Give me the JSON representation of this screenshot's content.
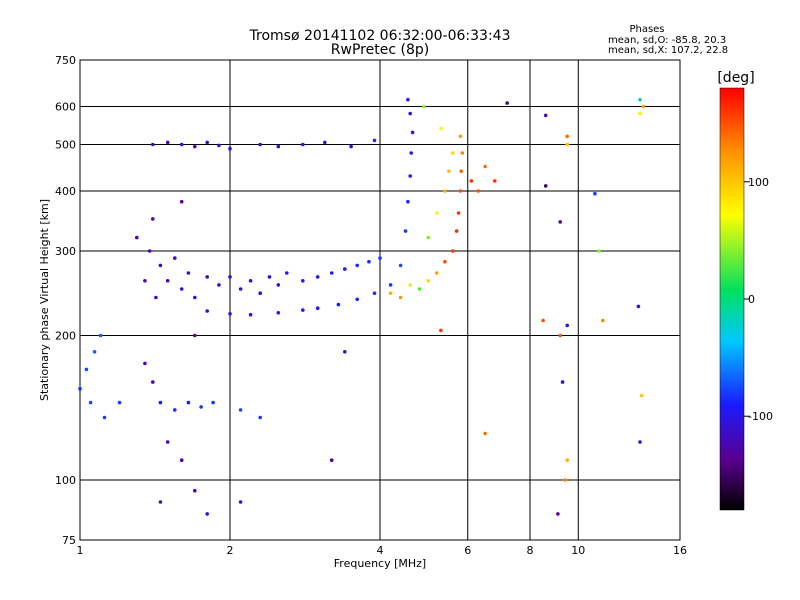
{
  "chart_data": {
    "type": "scatter",
    "title": "Tromsø 20141102 06:32:00-06:33:43",
    "subtitle": "RwPretec (8p)",
    "xlabel": "Frequency [MHz]",
    "ylabel": "Stationary phase Virtual Height [km]",
    "x_scale": "log",
    "y_scale": "log",
    "xlim": [
      1,
      16
    ],
    "ylim": [
      75,
      750
    ],
    "x_ticks": [
      1,
      2,
      4,
      6,
      8,
      10,
      16
    ],
    "x_tick_labels": [
      "1",
      "2",
      "4",
      "6",
      "8",
      "10",
      "16"
    ],
    "y_ticks": [
      75,
      100,
      200,
      300,
      400,
      500,
      600,
      750
    ],
    "y_tick_labels": [
      "75",
      "100",
      "200",
      "300",
      "400",
      "500",
      "600",
      "750"
    ],
    "grid_x": [
      2,
      4,
      6,
      8,
      10
    ],
    "grid_y": [
      100,
      200,
      300,
      400,
      500,
      600
    ],
    "grid": true,
    "phase_header": "Phases",
    "stats_o": "mean, sd,O: -85.8, 20.3",
    "stats_x": "mean, sd,X: 107.2, 22.8",
    "colorbar": {
      "label": "[deg]",
      "range": [
        -180,
        180
      ],
      "ticks": [
        100,
        0,
        -100
      ],
      "tick_labels": [
        "100",
        "0",
        "-100"
      ]
    },
    "series": [
      {
        "points": [
          [
            1.0,
            155,
            -80
          ],
          [
            1.03,
            170,
            -75
          ],
          [
            1.07,
            185,
            -70
          ],
          [
            1.1,
            200,
            -70
          ],
          [
            1.05,
            145,
            -75
          ],
          [
            1.12,
            135,
            -80
          ],
          [
            1.2,
            145,
            -78
          ],
          [
            1.35,
            260,
            -125
          ],
          [
            1.38,
            300,
            -125
          ],
          [
            1.42,
            240,
            -120
          ],
          [
            1.45,
            280,
            -115
          ],
          [
            1.5,
            260,
            -120
          ],
          [
            1.55,
            290,
            -120
          ],
          [
            1.6,
            250,
            -115
          ],
          [
            1.65,
            270,
            -115
          ],
          [
            1.7,
            240,
            -110
          ],
          [
            1.8,
            265,
            -115
          ],
          [
            1.9,
            255,
            -110
          ],
          [
            2.0,
            265,
            -110
          ],
          [
            2.1,
            250,
            -105
          ],
          [
            2.2,
            260,
            -110
          ],
          [
            2.3,
            245,
            -105
          ],
          [
            2.4,
            265,
            -100
          ],
          [
            2.5,
            255,
            -100
          ],
          [
            2.6,
            270,
            -95
          ],
          [
            2.8,
            260,
            -95
          ],
          [
            3.0,
            265,
            -95
          ],
          [
            3.2,
            270,
            -90
          ],
          [
            3.4,
            275,
            -90
          ],
          [
            3.6,
            280,
            -85
          ],
          [
            3.8,
            285,
            -85
          ],
          [
            4.0,
            290,
            -80
          ],
          [
            1.8,
            225,
            -100
          ],
          [
            2.0,
            222,
            -100
          ],
          [
            2.2,
            221,
            -100
          ],
          [
            2.5,
            223,
            -95
          ],
          [
            2.8,
            226,
            -92
          ],
          [
            3.0,
            228,
            -90
          ],
          [
            3.3,
            232,
            -88
          ],
          [
            3.6,
            238,
            -85
          ],
          [
            3.9,
            245,
            -82
          ],
          [
            4.2,
            255,
            -80
          ],
          [
            4.4,
            280,
            -75
          ],
          [
            4.5,
            330,
            -80
          ],
          [
            4.55,
            380,
            -85
          ],
          [
            4.6,
            430,
            -90
          ],
          [
            4.62,
            480,
            -95
          ],
          [
            4.65,
            530,
            -100
          ],
          [
            4.6,
            580,
            -100
          ],
          [
            4.55,
            620,
            -100
          ],
          [
            1.4,
            500,
            -115
          ],
          [
            1.5,
            505,
            -120
          ],
          [
            1.6,
            500,
            -115
          ],
          [
            1.7,
            495,
            -120
          ],
          [
            1.8,
            505,
            -115
          ],
          [
            1.9,
            498,
            -115
          ],
          [
            2.0,
            490,
            -110
          ],
          [
            2.3,
            500,
            -115
          ],
          [
            2.5,
            495,
            -110
          ],
          [
            2.8,
            500,
            -105
          ],
          [
            3.1,
            505,
            -100
          ],
          [
            3.5,
            495,
            -95
          ],
          [
            3.9,
            510,
            -85
          ],
          [
            1.45,
            145,
            -90
          ],
          [
            1.55,
            140,
            -85
          ],
          [
            1.65,
            145,
            -90
          ],
          [
            1.75,
            142,
            -80
          ],
          [
            1.85,
            145,
            -80
          ],
          [
            2.1,
            140,
            -75
          ],
          [
            2.3,
            135,
            -80
          ],
          [
            1.35,
            175,
            -120
          ],
          [
            1.4,
            160,
            -125
          ],
          [
            1.5,
            120,
            -125
          ],
          [
            1.6,
            110,
            -130
          ],
          [
            1.7,
            95,
            -120
          ],
          [
            1.45,
            90,
            -115
          ],
          [
            1.8,
            85,
            -110
          ],
          [
            3.2,
            110,
            -135
          ],
          [
            3.4,
            185,
            -110
          ],
          [
            2.1,
            90,
            -100
          ],
          [
            1.7,
            200,
            -125
          ],
          [
            1.3,
            320,
            -125
          ],
          [
            1.4,
            350,
            -130
          ],
          [
            1.6,
            380,
            -130
          ]
        ]
      },
      {
        "points": [
          [
            4.8,
            250,
            30
          ],
          [
            5.0,
            260,
            90
          ],
          [
            5.2,
            270,
            120
          ],
          [
            5.4,
            285,
            150
          ],
          [
            5.6,
            300,
            160
          ],
          [
            5.7,
            330,
            165
          ],
          [
            5.75,
            360,
            160
          ],
          [
            5.8,
            400,
            150
          ],
          [
            5.82,
            440,
            140
          ],
          [
            5.85,
            480,
            130
          ],
          [
            5.8,
            520,
            120
          ],
          [
            4.4,
            240,
            120
          ],
          [
            4.2,
            245,
            110
          ],
          [
            4.6,
            255,
            60
          ],
          [
            5.0,
            320,
            40
          ],
          [
            5.2,
            360,
            80
          ],
          [
            5.4,
            400,
            110
          ],
          [
            5.5,
            440,
            100
          ],
          [
            5.6,
            480,
            90
          ],
          [
            5.3,
            540,
            70
          ],
          [
            4.9,
            600,
            40
          ],
          [
            6.3,
            400,
            150
          ],
          [
            6.5,
            450,
            140
          ],
          [
            6.8,
            420,
            160
          ],
          [
            6.1,
            420,
            160
          ],
          [
            5.3,
            205,
            160
          ],
          [
            9.5,
            520,
            140
          ],
          [
            9.5,
            500,
            100
          ],
          [
            9.5,
            110,
            110
          ],
          [
            9.4,
            100,
            130
          ],
          [
            13.3,
            580,
            80
          ],
          [
            13.5,
            600,
            120
          ],
          [
            13.4,
            150,
            100
          ],
          [
            13.3,
            620,
            -20
          ],
          [
            6.5,
            125,
            140
          ],
          [
            8.5,
            215,
            150
          ],
          [
            9.2,
            200,
            150
          ],
          [
            8.6,
            410,
            -150
          ],
          [
            9.2,
            345,
            -120
          ],
          [
            9.3,
            160,
            -110
          ],
          [
            9.5,
            210,
            -100
          ],
          [
            10.8,
            395,
            -80
          ],
          [
            11.0,
            300,
            40
          ],
          [
            11.2,
            215,
            130
          ],
          [
            13.2,
            230,
            -110
          ],
          [
            13.3,
            120,
            -110
          ],
          [
            8.6,
            575,
            -120
          ],
          [
            9.1,
            85,
            -130
          ],
          [
            7.2,
            610,
            -140
          ]
        ]
      }
    ]
  }
}
